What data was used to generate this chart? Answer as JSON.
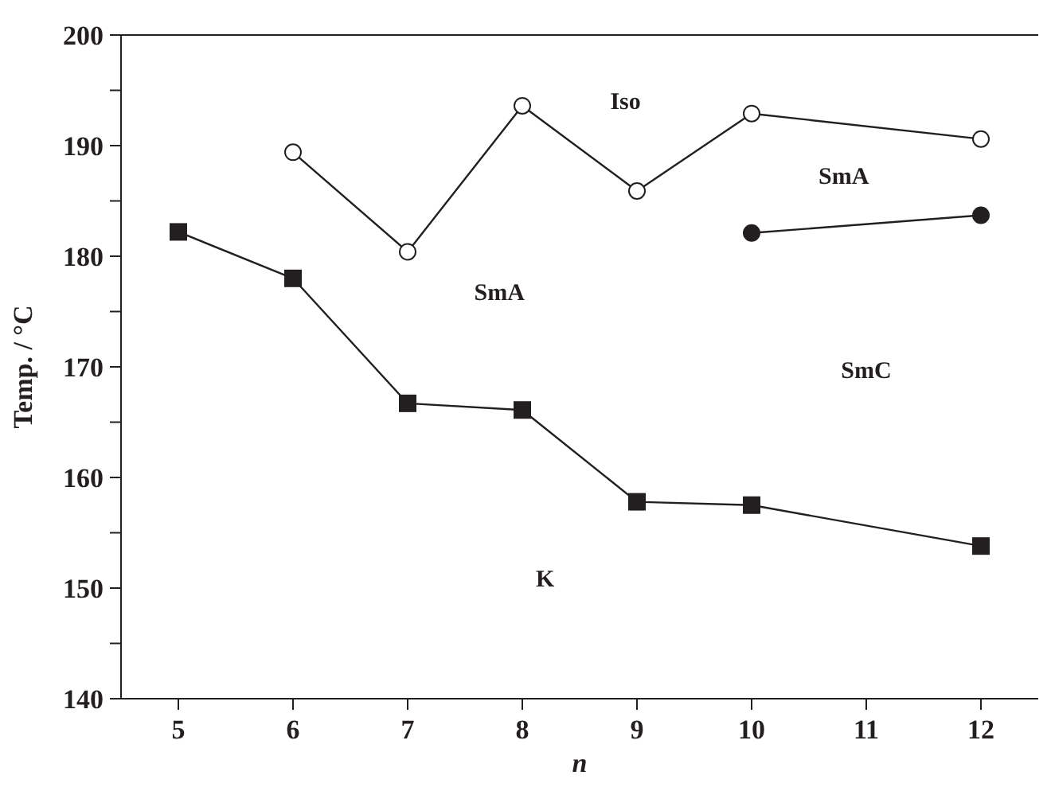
{
  "chart_data": {
    "type": "line",
    "xlabel": "n",
    "ylabel": "Temp. / °C",
    "xlim": [
      4.5,
      12.5
    ],
    "xticks": [
      5,
      6,
      7,
      8,
      9,
      10,
      11,
      12
    ],
    "ylim": [
      140,
      200
    ],
    "yticks": [
      140,
      {
        "value": 145,
        "label": null
      },
      150,
      {
        "value": 155,
        "label": null
      },
      160,
      {
        "value": 165,
        "label": null
      },
      170,
      {
        "value": 175,
        "label": null
      },
      180,
      {
        "value": 185,
        "label": null
      },
      190,
      {
        "value": 195,
        "label": null
      },
      200
    ],
    "grid": false,
    "legend": false,
    "line_style": "solid",
    "series": [
      {
        "color": "#231f20",
        "marker": "square",
        "x": [
          5,
          6,
          7,
          8,
          9,
          10,
          12
        ],
        "values": [
          182.2,
          178.0,
          166.7,
          166.1,
          157.8,
          157.5,
          153.8
        ]
      },
      {
        "color": "#ffffff",
        "marker": "circle",
        "x": [
          6,
          7,
          8,
          9,
          10,
          12
        ],
        "values": [
          189.4,
          180.4,
          193.6,
          185.9,
          192.9,
          190.6
        ]
      },
      {
        "color": "#231f20",
        "marker": "circle",
        "x": [
          10,
          12
        ],
        "values": [
          182.1,
          183.7
        ]
      }
    ],
    "annotations": [
      "Iso",
      "SmA",
      "SmA",
      "SmC",
      "K"
    ]
  }
}
